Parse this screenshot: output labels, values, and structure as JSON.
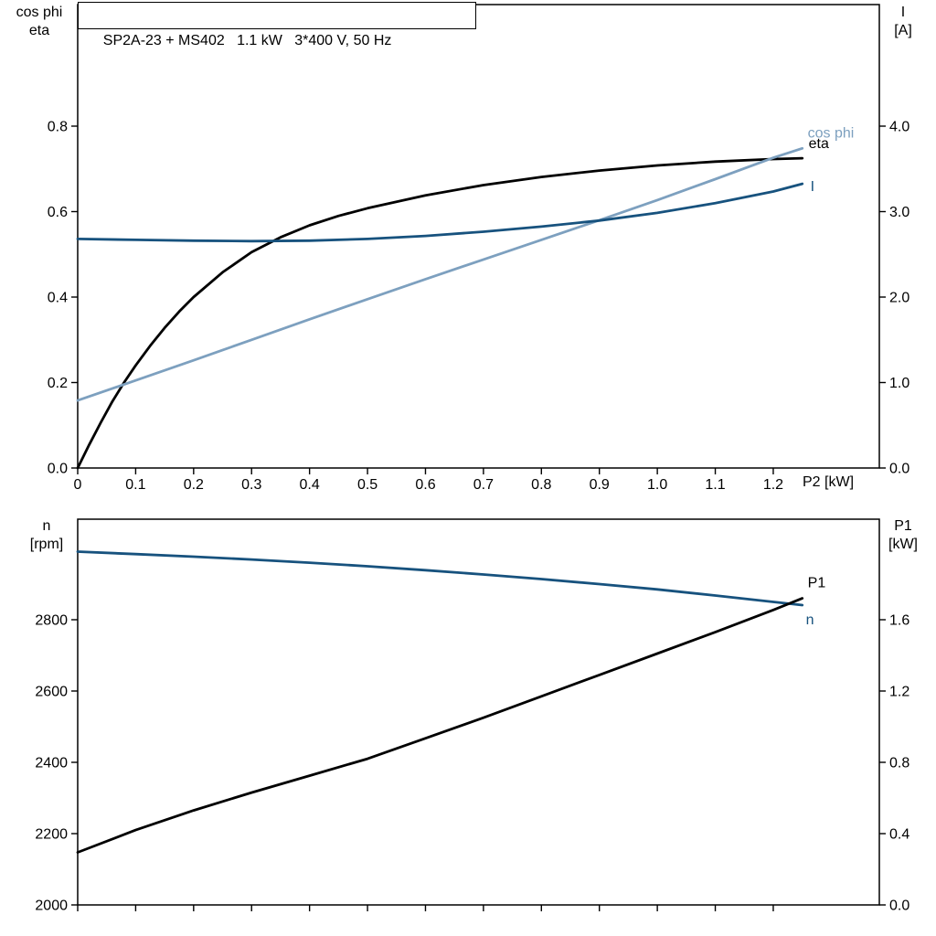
{
  "colors": {
    "black": "#000000",
    "dark_blue": "#17527e",
    "light_blue": "#7da0bf",
    "frame": "#000000",
    "background": "#ffffff"
  },
  "chart_data": [
    {
      "type": "line",
      "title": "SP2A-23 + MS402   1.1 kW   3*400 V, 50 Hz",
      "grid": false,
      "legend_position": "curve-end-labels",
      "x_axis": {
        "label": "P2 [kW]",
        "min": 0,
        "max": 1.383,
        "ticks": [
          0,
          0.1,
          0.2,
          0.3,
          0.4,
          0.5,
          0.6,
          0.7,
          0.8,
          0.9,
          1.0,
          1.1,
          1.2
        ],
        "tick_labels": [
          "0",
          "0.1",
          "0.2",
          "0.3",
          "0.4",
          "0.5",
          "0.6",
          "0.7",
          "0.8",
          "0.9",
          "1.0",
          "1.1",
          "1.2"
        ]
      },
      "left_axis": {
        "label": "cos phi\neta",
        "min": 0,
        "max": 1.0845,
        "ticks": [
          0,
          0.2,
          0.4,
          0.6,
          0.8
        ],
        "tick_labels": [
          "0.0",
          "0.2",
          "0.4",
          "0.6",
          "0.8"
        ]
      },
      "right_axis": {
        "label": "I\n[A]",
        "min": 0,
        "max": 5.4225,
        "ticks": [
          0,
          1,
          2,
          3,
          4
        ],
        "tick_labels": [
          "0.0",
          "1.0",
          "2.0",
          "3.0",
          "4.0"
        ]
      },
      "series": [
        {
          "name": "eta",
          "axis": "left",
          "color_key": "black",
          "label": {
            "text": "eta",
            "dx": 7,
            "dy": -11
          },
          "x": [
            0,
            0.02,
            0.04,
            0.06,
            0.08,
            0.1,
            0.125,
            0.15,
            0.175,
            0.2,
            0.25,
            0.3,
            0.35,
            0.4,
            0.45,
            0.5,
            0.6,
            0.7,
            0.8,
            0.9,
            1.0,
            1.1,
            1.2,
            1.25
          ],
          "y": [
            0,
            0.055,
            0.107,
            0.156,
            0.2,
            0.24,
            0.286,
            0.328,
            0.366,
            0.4,
            0.458,
            0.505,
            0.54,
            0.568,
            0.59,
            0.608,
            0.638,
            0.662,
            0.681,
            0.696,
            0.708,
            0.717,
            0.723,
            0.725
          ]
        },
        {
          "name": "cos phi",
          "axis": "left",
          "color_key": "light_blue",
          "label": {
            "text": "cos phi",
            "dx": 6,
            "dy": -12
          },
          "x": [
            0,
            0.1,
            0.2,
            0.3,
            0.4,
            0.5,
            0.6,
            0.7,
            0.8,
            0.9,
            1.0,
            1.1,
            1.2,
            1.25
          ],
          "y": [
            0.158,
            0.205,
            0.252,
            0.3,
            0.348,
            0.395,
            0.442,
            0.488,
            0.534,
            0.58,
            0.627,
            0.676,
            0.726,
            0.748
          ]
        },
        {
          "name": "I",
          "axis": "right",
          "color_key": "dark_blue",
          "label": {
            "text": "I",
            "dx": 9,
            "dy": 8
          },
          "x": [
            0,
            0.1,
            0.2,
            0.3,
            0.4,
            0.5,
            0.6,
            0.7,
            0.8,
            0.9,
            1.0,
            1.1,
            1.2,
            1.25
          ],
          "y": [
            2.68,
            2.67,
            2.66,
            2.655,
            2.66,
            2.68,
            2.715,
            2.765,
            2.825,
            2.895,
            2.985,
            3.1,
            3.235,
            3.325
          ]
        }
      ]
    },
    {
      "type": "line",
      "title": "",
      "grid": false,
      "legend_position": "curve-end-labels",
      "x_axis": {
        "label": "",
        "min": 0,
        "max": 1.383,
        "ticks": [
          0,
          0.1,
          0.2,
          0.3,
          0.4,
          0.5,
          0.6,
          0.7,
          0.8,
          0.9,
          1.0,
          1.1,
          1.2
        ],
        "tick_labels": []
      },
      "left_axis": {
        "label": "n\n[rpm]",
        "min": 2000,
        "max": 3082,
        "ticks": [
          2000,
          2200,
          2400,
          2600,
          2800
        ],
        "tick_labels": [
          "2000",
          "2200",
          "2400",
          "2600",
          "2800"
        ]
      },
      "right_axis": {
        "label": "P1\n[kW]",
        "min": 0,
        "max": 2.164,
        "ticks": [
          0,
          0.4,
          0.8,
          1.2,
          1.6
        ],
        "tick_labels": [
          "0.0",
          "0.4",
          "0.8",
          "1.2",
          "1.6"
        ]
      },
      "series": [
        {
          "name": "n",
          "axis": "left",
          "color_key": "dark_blue",
          "label": {
            "text": "n",
            "dx": 4,
            "dy": 21
          },
          "x": [
            0,
            0.1,
            0.2,
            0.3,
            0.4,
            0.5,
            0.6,
            0.7,
            0.8,
            0.9,
            1.0,
            1.1,
            1.2,
            1.25
          ],
          "y": [
            2991,
            2984,
            2977,
            2969,
            2960,
            2950,
            2939,
            2927,
            2914,
            2900,
            2885,
            2868,
            2850,
            2841
          ]
        },
        {
          "name": "P1",
          "axis": "right",
          "color_key": "black",
          "label": {
            "text": "P1",
            "dx": 6,
            "dy": -12
          },
          "x": [
            0,
            0.1,
            0.2,
            0.3,
            0.4,
            0.5,
            0.6,
            0.7,
            0.8,
            0.9,
            1.0,
            1.1,
            1.2,
            1.25
          ],
          "y": [
            0.295,
            0.42,
            0.53,
            0.63,
            0.725,
            0.82,
            0.935,
            1.05,
            1.17,
            1.29,
            1.41,
            1.53,
            1.655,
            1.72
          ]
        }
      ]
    }
  ]
}
